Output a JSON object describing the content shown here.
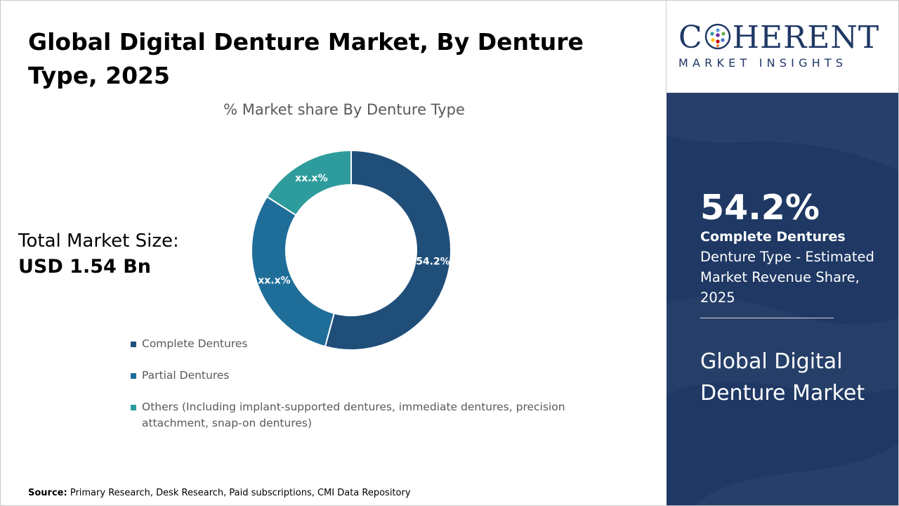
{
  "title": "Global Digital Denture Market, By Denture Type, 2025",
  "market_size": {
    "label": "Total Market Size:",
    "value": "USD 1.54 Bn"
  },
  "source": {
    "label": "Source:",
    "text": "Primary Research, Desk Research, Paid subscriptions, CMI Data Repository"
  },
  "logo": {
    "word_left": "C",
    "word_right": "HERENT",
    "subtitle": "MARKET INSIGHTS"
  },
  "highlight": {
    "value": "54.2%",
    "segment": "Complete Dentures",
    "description": "Denture Type - Estimated Market Revenue Share, 2025",
    "market_name": "Global Digital Denture Market"
  },
  "colors": {
    "complete": "#1f4e79",
    "partial": "#1f6e99",
    "others": "#2e9c9c",
    "panel": "#1f3864"
  },
  "chart_data": {
    "type": "pie",
    "title": "% Market share By Denture Type",
    "hole": true,
    "legend_position": "bottom-left",
    "categories": [
      "Complete Dentures",
      "Partial Dentures",
      "Others (Including implant-supported dentures, immediate dentures, precision attachment, snap-on dentures)"
    ],
    "values": [
      54.2,
      29.8,
      16.0
    ],
    "data_labels": [
      "54.2%",
      "xx.x%",
      "xx.x%"
    ]
  }
}
